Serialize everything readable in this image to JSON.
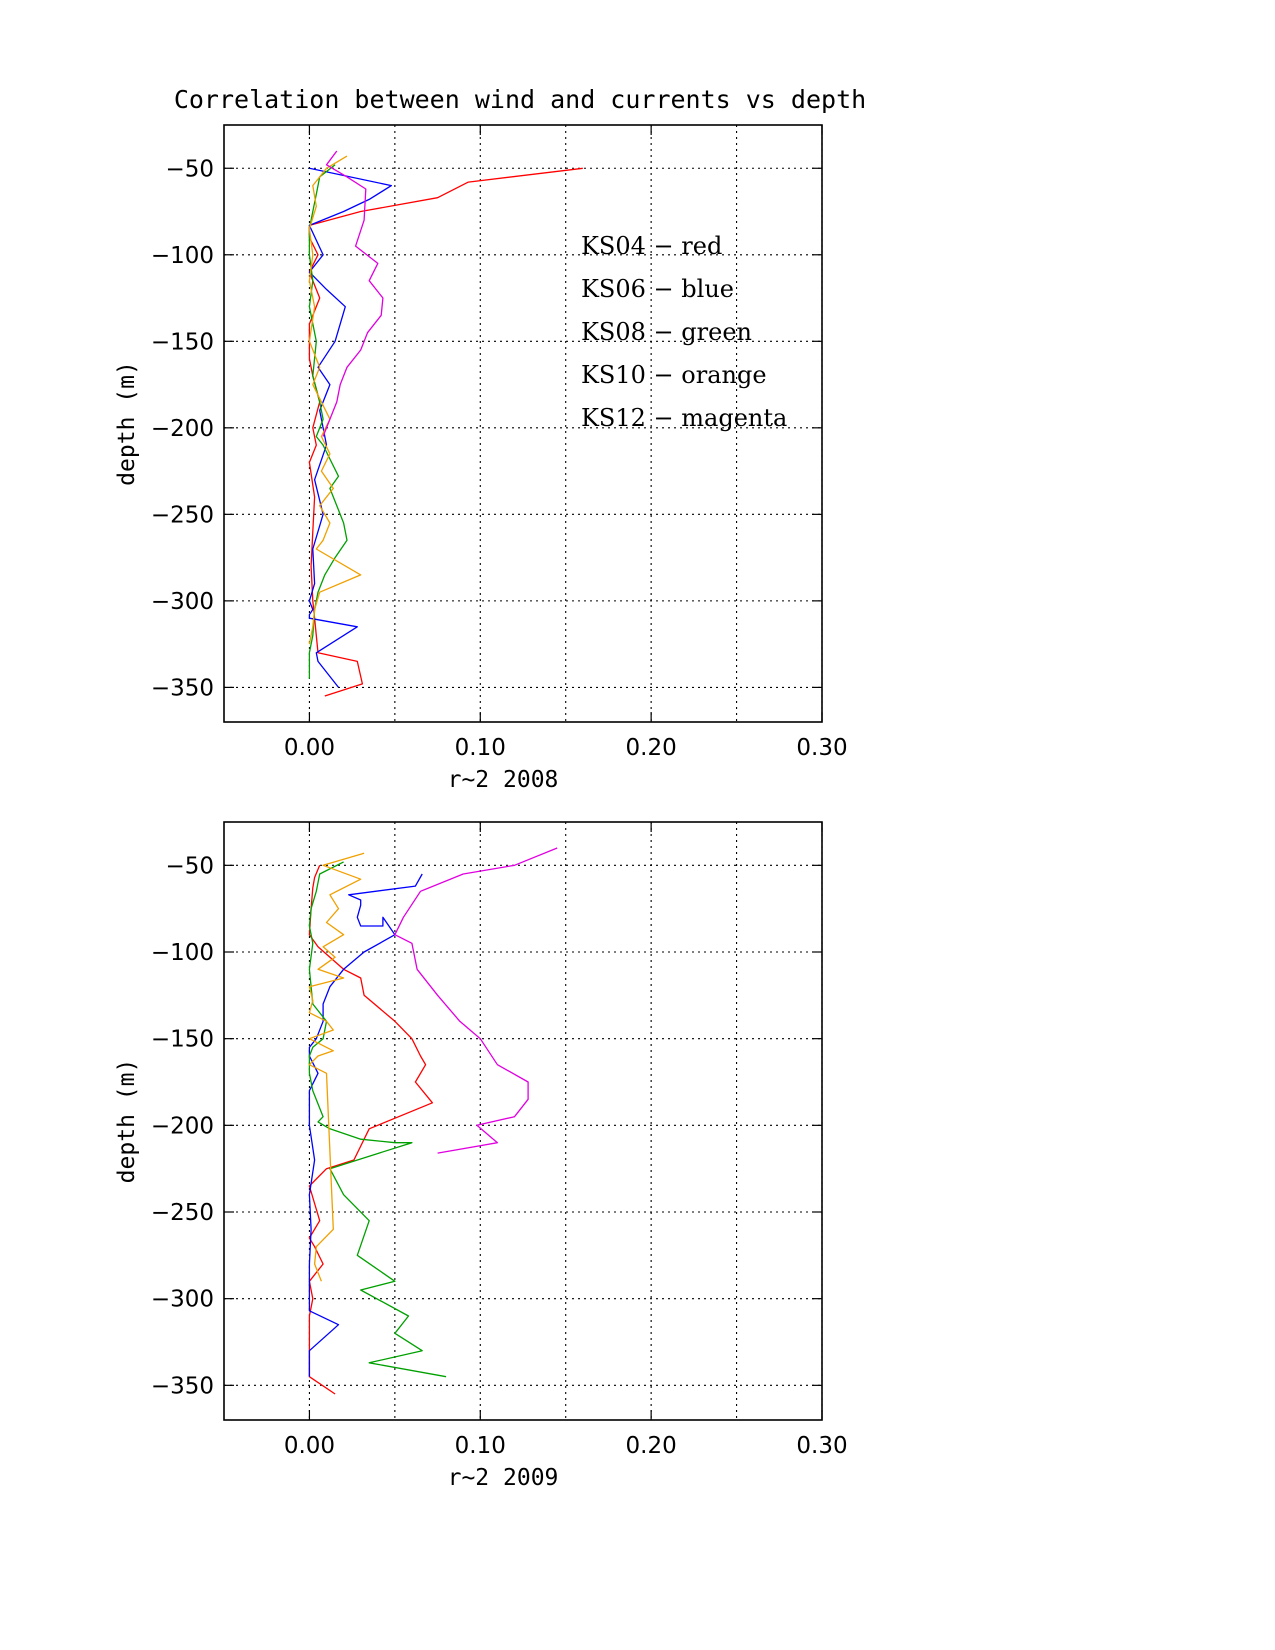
{
  "chart_data": [
    {
      "type": "line",
      "title": "Correlation between wind and currents vs depth",
      "xlabel": "r~2 2008",
      "ylabel": "depth (m)",
      "xlim": [
        -0.05,
        0.3
      ],
      "ylim": [
        -370,
        -25
      ],
      "xticks": [
        0.0,
        0.1,
        0.2,
        0.3
      ],
      "xtick_labels": [
        "0.00",
        "0.10",
        "0.20",
        "0.30"
      ],
      "yticks": [
        -50,
        -100,
        -150,
        -200,
        -250,
        -300,
        -350
      ],
      "ytick_labels": [
        "−50",
        "−100",
        "−150",
        "−200",
        "−250",
        "−300",
        "−350"
      ],
      "grid": true,
      "legend": {
        "placement": "upper-right",
        "entries": [
          "KS04 − red",
          "KS06 − blue",
          "KS08 − green",
          "KS10 − orange",
          "KS12 − magenta"
        ]
      },
      "series": [
        {
          "color": "#ff0000",
          "x": [
            0.16,
            0.093,
            0.075,
            0.03,
            0.0,
            0.0,
            0.005,
            0.0,
            0.006,
            0.0,
            0.0,
            0.002,
            0.006,
            0.002,
            0.004,
            0.0,
            0.003,
            0.002,
            0.001,
            0.002,
            0.003,
            0.004,
            0.005,
            0.028,
            0.031,
            0.009
          ],
          "y": [
            -50,
            -58,
            -67,
            -75,
            -83,
            -90,
            -100,
            -110,
            -125,
            -140,
            -160,
            -170,
            -185,
            -200,
            -210,
            -220,
            -240,
            -260,
            -280,
            -300,
            -310,
            -320,
            -330,
            -335,
            -348,
            -355
          ]
        },
        {
          "color": "#0000ff",
          "x": [
            0.0,
            0.048,
            0.035,
            0.02,
            0.0,
            0.008,
            0.0,
            0.01,
            0.021,
            0.015,
            0.005,
            0.012,
            0.006,
            0.01,
            0.003,
            0.008,
            0.002,
            0.003,
            0.0,
            0.002,
            0.0,
            0.0,
            0.028,
            0.004,
            0.005,
            0.017
          ],
          "y": [
            -50,
            -60,
            -68,
            -75,
            -83,
            -100,
            -110,
            -120,
            -130,
            -150,
            -165,
            -175,
            -190,
            -210,
            -230,
            -250,
            -270,
            -290,
            -300,
            -305,
            -308,
            -310,
            -315,
            -330,
            -335,
            -350
          ]
        },
        {
          "color": "#00a000",
          "x": [
            0.015,
            0.006,
            0.004,
            0.002,
            0.0,
            0.0,
            0.002,
            0.0,
            0.004,
            0.002,
            0.006,
            0.008,
            0.004,
            0.008,
            0.012,
            0.017,
            0.012,
            0.016,
            0.02,
            0.022,
            0.015,
            0.009,
            0.005,
            0.003,
            0.002,
            0.0,
            0.0
          ],
          "y": [
            -48,
            -55,
            -65,
            -75,
            -85,
            -100,
            -115,
            -130,
            -150,
            -170,
            -185,
            -195,
            -205,
            -210,
            -218,
            -228,
            -235,
            -245,
            -255,
            -265,
            -275,
            -285,
            -295,
            -305,
            -320,
            -330,
            -345
          ]
        },
        {
          "color": "#f0a000",
          "x": [
            0.022,
            0.01,
            0.002,
            0.004,
            0.0,
            0.002,
            0.0,
            0.003,
            0.0,
            0.006,
            0.002,
            0.007,
            0.012,
            0.007,
            0.012,
            0.007,
            0.014,
            0.006,
            0.012,
            0.008,
            0.004,
            0.03,
            0.006,
            0.003,
            0.002,
            0.0
          ],
          "y": [
            -43,
            -50,
            -60,
            -72,
            -85,
            -100,
            -115,
            -130,
            -150,
            -165,
            -175,
            -185,
            -195,
            -205,
            -215,
            -225,
            -235,
            -245,
            -255,
            -265,
            -270,
            -285,
            -295,
            -305,
            -315,
            -325
          ]
        },
        {
          "color": "#e000e0",
          "x": [
            0.016,
            0.01,
            0.022,
            0.033,
            0.032,
            0.027,
            0.04,
            0.035,
            0.043,
            0.042,
            0.034,
            0.03,
            0.022,
            0.018,
            0.016,
            0.012,
            0.008
          ],
          "y": [
            -40,
            -48,
            -55,
            -62,
            -80,
            -95,
            -105,
            -115,
            -125,
            -135,
            -145,
            -155,
            -165,
            -175,
            -185,
            -195,
            -205
          ]
        }
      ]
    },
    {
      "type": "line",
      "title": "",
      "xlabel": "r~2 2009",
      "ylabel": "depth (m)",
      "xlim": [
        -0.05,
        0.3
      ],
      "ylim": [
        -370,
        -25
      ],
      "xticks": [
        0.0,
        0.1,
        0.2,
        0.3
      ],
      "xtick_labels": [
        "0.00",
        "0.10",
        "0.20",
        "0.30"
      ],
      "yticks": [
        -50,
        -100,
        -150,
        -200,
        -250,
        -300,
        -350
      ],
      "ytick_labels": [
        "−50",
        "−100",
        "−150",
        "−200",
        "−250",
        "−300",
        "−350"
      ],
      "grid": true,
      "series": [
        {
          "color": "#ff0000",
          "x": [
            0.006,
            0.003,
            0.002,
            0.001,
            0.0,
            0.005,
            0.02,
            0.03,
            0.032,
            0.05,
            0.06,
            0.065,
            0.068,
            0.062,
            0.072,
            0.035,
            0.026,
            0.01,
            0.0,
            0.006,
            0.0,
            0.003,
            0.008,
            0.0,
            0.002,
            0.0,
            0.0,
            0.015
          ],
          "y": [
            -50,
            -57,
            -63,
            -75,
            -90,
            -97,
            -110,
            -115,
            -125,
            -140,
            -150,
            -160,
            -165,
            -175,
            -187,
            -202,
            -220,
            -225,
            -235,
            -255,
            -265,
            -270,
            -280,
            -290,
            -300,
            -310,
            -345,
            -355
          ]
        },
        {
          "color": "#0000ff",
          "x": [
            0.066,
            0.062,
            0.023,
            0.03,
            0.03,
            0.028,
            0.03,
            0.043,
            0.043,
            0.05,
            0.032,
            0.02,
            0.012,
            0.008,
            0.008,
            0.004,
            0.0,
            0.0,
            0.005,
            0.0,
            0.0,
            0.003,
            0.0,
            0.001,
            0.0,
            0.0,
            0.0,
            0.0,
            0.0,
            0.017,
            0.0,
            0.0
          ],
          "y": [
            -55,
            -62,
            -67,
            -70,
            -73,
            -80,
            -85,
            -85,
            -80,
            -90,
            -100,
            -110,
            -120,
            -130,
            -140,
            -150,
            -155,
            -160,
            -170,
            -180,
            -200,
            -220,
            -240,
            -260,
            -280,
            -295,
            -302,
            -305,
            -307,
            -315,
            -330,
            -345
          ]
        },
        {
          "color": "#00a000",
          "x": [
            0.02,
            0.006,
            0.004,
            0.001,
            0.0,
            0.002,
            0.0,
            0.002,
            0.01,
            0.008,
            0.002,
            0.0,
            0.0,
            0.002,
            0.008,
            0.005,
            0.012,
            0.03,
            0.05,
            0.06,
            0.012,
            0.02,
            0.035,
            0.028,
            0.05,
            0.03,
            0.058,
            0.05,
            0.066,
            0.035,
            0.08
          ],
          "y": [
            -48,
            -55,
            -65,
            -75,
            -85,
            -95,
            -110,
            -130,
            -140,
            -150,
            -155,
            -160,
            -170,
            -180,
            -195,
            -198,
            -202,
            -208,
            -210,
            -210,
            -225,
            -240,
            -255,
            -275,
            -290,
            -295,
            -310,
            -320,
            -330,
            -337,
            -345
          ]
        },
        {
          "color": "#f0a000",
          "x": [
            0.032,
            0.008,
            0.03,
            0.012,
            0.017,
            0.01,
            0.02,
            0.008,
            0.015,
            0.005,
            0.02,
            0.0,
            0.002,
            0.0,
            0.01,
            0.014,
            0.0,
            0.014,
            0.005,
            0.0,
            0.01,
            0.014,
            0.004,
            0.003,
            0.007
          ],
          "y": [
            -43,
            -50,
            -58,
            -67,
            -75,
            -83,
            -90,
            -97,
            -103,
            -110,
            -115,
            -120,
            -128,
            -135,
            -140,
            -145,
            -150,
            -157,
            -160,
            -165,
            -170,
            -260,
            -270,
            -280,
            -290
          ]
        },
        {
          "color": "#e000e0",
          "x": [
            0.145,
            0.12,
            0.09,
            0.065,
            0.055,
            0.05,
            0.06,
            0.063,
            0.075,
            0.088,
            0.1,
            0.11,
            0.128,
            0.128,
            0.12,
            0.098,
            0.11,
            0.075
          ],
          "y": [
            -40,
            -50,
            -55,
            -65,
            -80,
            -90,
            -95,
            -110,
            -125,
            -140,
            -150,
            -165,
            -175,
            -185,
            -195,
            -200,
            -210,
            -216
          ]
        }
      ]
    }
  ]
}
